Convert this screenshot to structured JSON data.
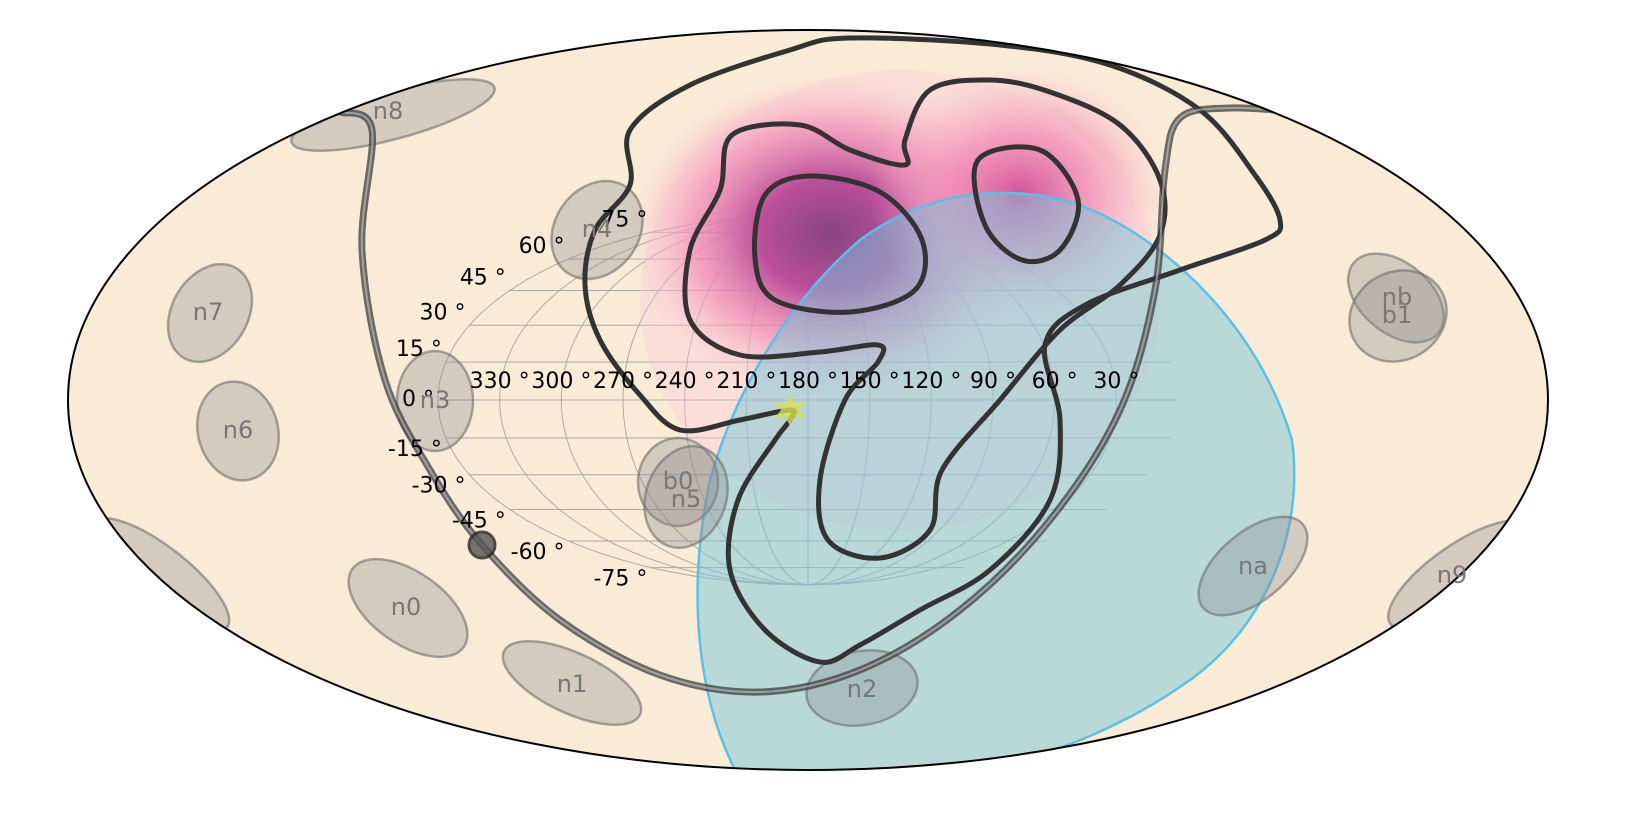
{
  "longitude_labels": [
    {
      "value": 330,
      "label": "330 °"
    },
    {
      "value": 300,
      "label": "300 °"
    },
    {
      "value": 270,
      "label": "270 °"
    },
    {
      "value": 240,
      "label": "240 °"
    },
    {
      "value": 210,
      "label": "210 °"
    },
    {
      "value": 180,
      "label": "180 °"
    },
    {
      "value": 150,
      "label": "150 °"
    },
    {
      "value": 120,
      "label": "120 °"
    },
    {
      "value": 90,
      "label": "90 °"
    },
    {
      "value": 60,
      "label": "60 °"
    },
    {
      "value": 30,
      "label": "30 °"
    }
  ],
  "latitude_labels": [
    {
      "value": 75,
      "label": "75 °"
    },
    {
      "value": 60,
      "label": "60 °"
    },
    {
      "value": 45,
      "label": "45 °"
    },
    {
      "value": 30,
      "label": "30 °"
    },
    {
      "value": 15,
      "label": "15 °"
    },
    {
      "value": 0,
      "label": "0 °"
    },
    {
      "value": -15,
      "label": "-15 °"
    },
    {
      "value": -30,
      "label": "-30 °"
    },
    {
      "value": -45,
      "label": "-45 °"
    },
    {
      "value": -60,
      "label": "-60 °"
    },
    {
      "value": -75,
      "label": "-75 °"
    }
  ],
  "detectors": [
    "n8",
    "n4",
    "n7",
    "n6",
    "n3",
    "b0",
    "n5",
    "n0",
    "n1",
    "n2",
    "na",
    "n9",
    "nb",
    "b1"
  ]
}
